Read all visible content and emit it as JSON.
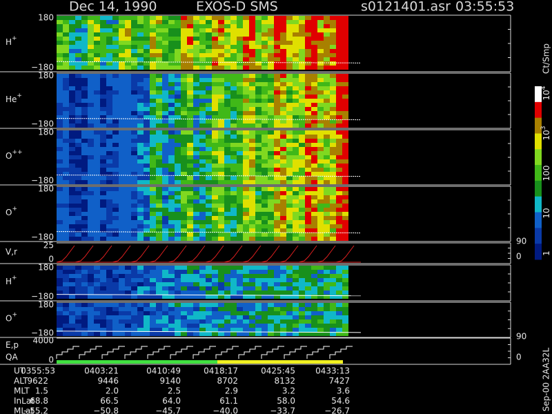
{
  "header": {
    "date": "Dec 14, 1990",
    "instrument": "EXOS-D SMS",
    "file": "s0121401.asr",
    "time": "03:55:53"
  },
  "panels": [
    {
      "label": "H",
      "sup": "+",
      "top": "180",
      "bottom": "−180"
    },
    {
      "label": "He",
      "sup": "+",
      "top": "180",
      "bottom": "−180"
    },
    {
      "label": "O",
      "sup": "++",
      "top": "180",
      "bottom": "−180"
    },
    {
      "label": "O",
      "sup": "+",
      "top": "180",
      "bottom": "−180"
    },
    {
      "label": "V,r",
      "top": "25",
      "bottom": "0",
      "right_top": "90",
      "right_bottom": "0"
    },
    {
      "label": "H",
      "sup": "+",
      "top": "180",
      "bottom": "−180"
    },
    {
      "label": "O",
      "sup": "+",
      "top": "180",
      "bottom": "−180"
    },
    {
      "label": "E,p",
      "label2": "QA",
      "top": "4000",
      "bottom": "0",
      "right_top": "90",
      "right_bottom": "0"
    }
  ],
  "colorbar": {
    "unit": "Ct/Smp",
    "ticks": [
      {
        "base": "10",
        "exp": "4"
      },
      {
        "base": "10",
        "exp": "3"
      },
      {
        "base": "100"
      },
      {
        "base": "10"
      },
      {
        "base": "1"
      }
    ]
  },
  "table": {
    "rows": [
      [
        "UT",
        "0355:53",
        "0403:21",
        "0410:49",
        "0418:17",
        "0425:45",
        "0433:13"
      ],
      [
        "ALT",
        "9622",
        "9446",
        "9140",
        "8702",
        "8132",
        "7427"
      ],
      [
        "MLT",
        "1.5",
        "2.0",
        "2.5",
        "2.9",
        "3.2",
        "3.6"
      ],
      [
        "InLat",
        "68.8",
        "66.5",
        "64.0",
        "61.1",
        "58.0",
        "54.6"
      ],
      [
        "MLat",
        "−55.2",
        "−50.8",
        "−45.7",
        "−40.0",
        "−33.7",
        "−26.7"
      ]
    ]
  },
  "footer": "Sep-00 2AA32L"
}
